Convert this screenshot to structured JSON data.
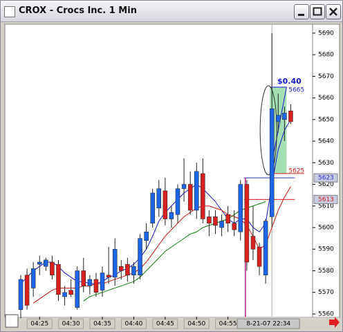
{
  "window": {
    "title": "CROX - Crocs Inc. 1 Min"
  },
  "chart_data": {
    "type": "candlestick",
    "categories": [
      null,
      null,
      null,
      "04:25",
      null,
      null,
      null,
      null,
      "04:30",
      null,
      null,
      null,
      null,
      "04:35",
      null,
      null,
      null,
      null,
      "04:40",
      null,
      null,
      null,
      null,
      "04:45",
      null,
      null,
      null,
      null,
      "04:50",
      null,
      null,
      null,
      null,
      "04:55",
      null,
      null,
      null,
      null,
      null,
      null,
      null,
      null,
      null,
      null
    ],
    "open": [
      5562,
      5578,
      5572,
      5583,
      5582,
      5584,
      5583,
      5568,
      5571,
      5563,
      5580,
      5573,
      5576,
      5571,
      5578,
      5577,
      5582,
      5583,
      5578,
      5578,
      5594,
      5602,
      5609,
      5617,
      5604,
      5606,
      5618,
      5620,
      5608,
      5625,
      5605,
      5605,
      5600,
      5606,
      5602,
      5598,
      5620,
      5596,
      5591,
      5578,
      5605,
      5649,
      5650,
      5654
    ],
    "high": [
      5578,
      5581,
      5584,
      5587,
      5586,
      5587,
      5585,
      5573,
      5576,
      5582,
      5586,
      5578,
      5579,
      5582,
      5591,
      5595,
      5585,
      5586,
      5584,
      5597,
      5602,
      5618,
      5622,
      5623,
      5610,
      5620,
      5632,
      5626,
      5630,
      5632,
      5608,
      5608,
      5606,
      5610,
      5608,
      5622,
      5622,
      5610,
      5593,
      5604,
      5690,
      5662,
      5656,
      5657
    ],
    "low": [
      5558,
      5562,
      5568,
      5578,
      5580,
      5576,
      5566,
      5564,
      5568,
      5562,
      5570,
      5569,
      5568,
      5568,
      5574,
      5573,
      5576,
      5575,
      5574,
      5576,
      5590,
      5600,
      5605,
      5601,
      5600,
      5602,
      5612,
      5606,
      5604,
      5602,
      5596,
      5597,
      5596,
      5598,
      5596,
      5594,
      5580,
      5585,
      5578,
      5574,
      5600,
      5644,
      5640,
      5648
    ],
    "close": [
      5576,
      5564,
      5581,
      5584,
      5585,
      5578,
      5569,
      5570,
      5569,
      5580,
      5573,
      5576,
      5570,
      5579,
      5577,
      5590,
      5580,
      5578,
      5582,
      5595,
      5598,
      5616,
      5618,
      5604,
      5607,
      5618,
      5620,
      5608,
      5626,
      5604,
      5602,
      5601,
      5603,
      5602,
      5599,
      5620,
      5584,
      5590,
      5582,
      5603,
      5655,
      5652,
      5653,
      5649
    ],
    "up_color": "#1e64e6",
    "down_color": "#d82020",
    "overlays": [
      {
        "color": "#1a1ad0",
        "values": [
          5574,
          5577,
          5580,
          5582,
          5584,
          5584,
          5582,
          5579,
          5577,
          5575,
          5575,
          5574,
          5574,
          5575,
          5577,
          5578,
          5580,
          5581,
          5583,
          5586,
          5590,
          5596,
          5603,
          5607,
          5610,
          5613,
          5616,
          5618,
          5620,
          5618,
          5615,
          5612,
          5608,
          5604,
          5602,
          5604,
          5604,
          5600,
          5598,
          5602,
          5620,
          5636,
          5645,
          5650
        ]
      },
      {
        "color": "#d01818",
        "values": [
          null,
          null,
          5565,
          5567,
          5569,
          5571,
          5572,
          5572,
          5572,
          5572,
          5573,
          5573,
          5574,
          5574,
          5575,
          5576,
          5577,
          5578,
          5579,
          5581,
          5584,
          5588,
          5592,
          5596,
          5599,
          5602,
          5605,
          5607,
          5609,
          5610,
          5610,
          5609,
          5608,
          5606,
          5605,
          5604,
          5601,
          5596,
          5590,
          5592,
          5600,
          5608,
          5614,
          5619
        ]
      },
      {
        "color": "#108010",
        "values": [
          null,
          null,
          null,
          null,
          null,
          null,
          null,
          null,
          null,
          null,
          5566,
          5568,
          5569,
          5570,
          5571,
          5572,
          5573,
          5574,
          5575,
          5577,
          5580,
          5583,
          5586,
          5589,
          5591,
          5593,
          5595,
          5597,
          5598,
          5600,
          5601,
          5602,
          5603,
          5604,
          5606,
          5608,
          5609,
          5610,
          5611,
          5612,
          null,
          null,
          null,
          null
        ]
      }
    ],
    "ylim": [
      5558.7,
      5693.8
    ],
    "yticks": [
      5560,
      5570,
      5580,
      5590,
      5600,
      5610,
      5620,
      5630,
      5640,
      5650,
      5660,
      5670,
      5680,
      5690
    ],
    "grid": false,
    "markers": [
      {
        "value": 5623,
        "color": "#2a36c8"
      },
      {
        "value": 5613,
        "color": "#d02020"
      }
    ],
    "measure": {
      "from": 5625,
      "to": 5665,
      "label": "$0.40",
      "color": "#8fd6a0"
    },
    "cursor_label": "8-21-07 22:34"
  }
}
